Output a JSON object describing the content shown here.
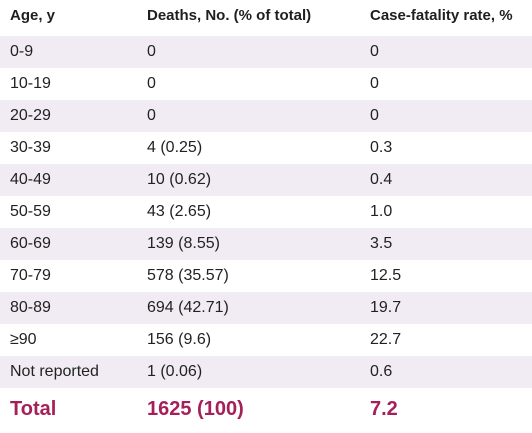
{
  "table": {
    "headers": [
      "Age, y",
      "Deaths, No. (% of total)",
      "Case-fatality rate, %"
    ],
    "rows": [
      [
        "0-9",
        "0",
        "0"
      ],
      [
        "10-19",
        "0",
        "0"
      ],
      [
        "20-29",
        "0",
        "0"
      ],
      [
        "30-39",
        "4 (0.25)",
        "0.3"
      ],
      [
        "40-49",
        "10 (0.62)",
        "0.4"
      ],
      [
        "50-59",
        "43 (2.65)",
        "1.0"
      ],
      [
        "60-69",
        "139 (8.55)",
        "3.5"
      ],
      [
        "70-79",
        "578 (35.57)",
        "12.5"
      ],
      [
        "80-89",
        "694 (42.71)",
        "19.7"
      ],
      [
        "≥90",
        "156 (9.6)",
        "22.7"
      ],
      [
        "Not reported",
        "1 (0.06)",
        "0.6"
      ]
    ],
    "total": [
      "Total",
      "1625 (100)",
      "7.2"
    ]
  },
  "colors": {
    "stripe": "#f1ecf4",
    "total_text": "#a5205a",
    "text": "#222222"
  }
}
